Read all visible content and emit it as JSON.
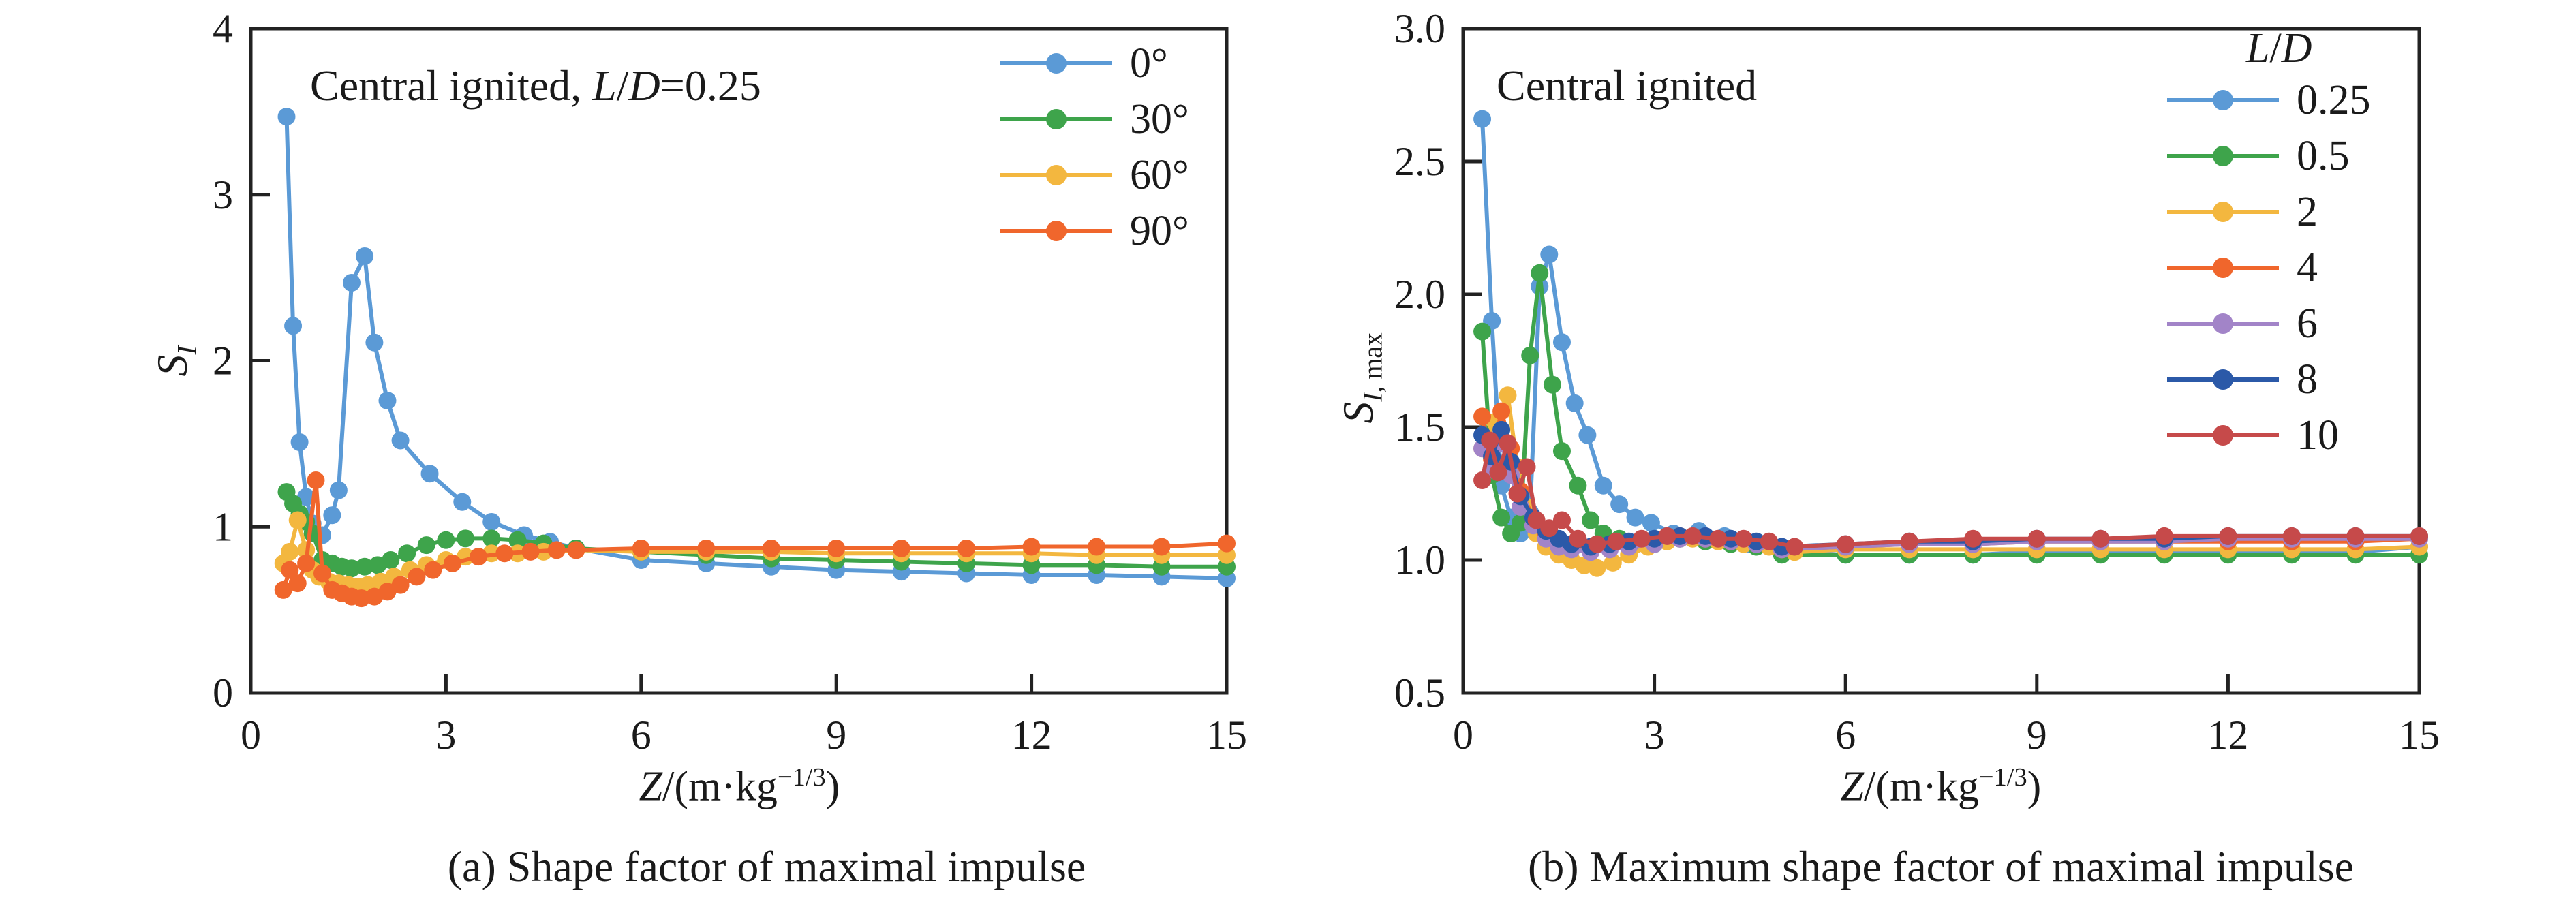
{
  "figure_background": "#ffffff",
  "axis_color": "#222222",
  "text_color": "#1a1a1a",
  "chart_data": [
    {
      "type": "line",
      "panel": "a",
      "title_rich": [
        {
          "t": "Central ignited, "
        },
        {
          "t": "L",
          "i": true
        },
        {
          "t": "/"
        },
        {
          "t": "D",
          "i": true
        },
        {
          "t": "=0.25"
        }
      ],
      "caption": "(a) Shape factor of maximal impulse",
      "xlabel_rich": [
        {
          "t": "Z",
          "i": true
        },
        {
          "t": "/(m·kg"
        },
        {
          "t": "−1/3",
          "sup": true
        },
        {
          "t": ")"
        }
      ],
      "ylabel_rich": [
        {
          "t": "S",
          "i": true
        },
        {
          "t": "I",
          "i": true,
          "sub": true
        }
      ],
      "xlim": [
        0,
        15
      ],
      "ylim": [
        0,
        4
      ],
      "grid": false,
      "x_ticks": [
        {
          "v": 0,
          "t": "0"
        },
        {
          "v": 3,
          "t": "3"
        },
        {
          "v": 6,
          "t": "6"
        },
        {
          "v": 9,
          "t": "9"
        },
        {
          "v": 12,
          "t": "12"
        },
        {
          "v": 15,
          "t": "15"
        }
      ],
      "y_ticks": [
        {
          "v": 0,
          "t": "0"
        },
        {
          "v": 1,
          "t": "1"
        },
        {
          "v": 2,
          "t": "2"
        },
        {
          "v": 3,
          "t": "3"
        },
        {
          "v": 4,
          "t": "4"
        }
      ],
      "legend": {
        "position": "upper-right-inside",
        "items": [
          {
            "label": "0°",
            "series": 0
          },
          {
            "label": "30°",
            "series": 1
          },
          {
            "label": "60°",
            "series": 2
          },
          {
            "label": "90°",
            "series": 3
          }
        ]
      },
      "series": [
        {
          "name": "0°",
          "color": "#5b9ad6",
          "x": [
            0.55,
            0.65,
            0.75,
            0.85,
            0.95,
            1.1,
            1.25,
            1.35,
            1.55,
            1.75,
            1.9,
            2.1,
            2.3,
            2.75,
            3.25,
            3.7,
            4.2,
            4.6,
            5,
            6,
            7,
            8,
            9,
            10,
            11,
            12,
            13,
            14,
            15
          ],
          "y": [
            3.47,
            2.21,
            1.51,
            1.18,
            1.02,
            0.95,
            1.07,
            1.22,
            2.47,
            2.63,
            2.11,
            1.76,
            1.52,
            1.32,
            1.15,
            1.03,
            0.95,
            0.91,
            0.87,
            0.8,
            0.78,
            0.76,
            0.74,
            0.73,
            0.72,
            0.71,
            0.71,
            0.7,
            0.69
          ]
        },
        {
          "name": "30°",
          "color": "#3ea44b",
          "x": [
            0.55,
            0.65,
            0.75,
            0.85,
            0.95,
            1.1,
            1.25,
            1.4,
            1.55,
            1.75,
            1.95,
            2.15,
            2.4,
            2.7,
            3.0,
            3.3,
            3.7,
            4.1,
            4.5,
            5,
            6,
            7,
            8,
            9,
            10,
            11,
            12,
            13,
            14,
            15
          ],
          "y": [
            1.21,
            1.14,
            1.08,
            1.03,
            0.96,
            0.8,
            0.78,
            0.76,
            0.75,
            0.76,
            0.77,
            0.8,
            0.84,
            0.89,
            0.92,
            0.93,
            0.93,
            0.92,
            0.9,
            0.87,
            0.85,
            0.83,
            0.81,
            0.8,
            0.79,
            0.78,
            0.77,
            0.77,
            0.76,
            0.76
          ]
        },
        {
          "name": "60°",
          "color": "#f3b73f",
          "x": [
            0.5,
            0.6,
            0.72,
            0.85,
            0.95,
            1.05,
            1.2,
            1.35,
            1.5,
            1.65,
            1.8,
            2.0,
            2.2,
            2.45,
            2.7,
            3.0,
            3.3,
            3.7,
            4.1,
            4.5,
            5,
            6,
            7,
            8,
            9,
            10,
            11,
            12,
            13,
            14,
            15
          ],
          "y": [
            0.78,
            0.85,
            1.04,
            0.86,
            0.74,
            0.7,
            0.67,
            0.66,
            0.65,
            0.64,
            0.65,
            0.67,
            0.7,
            0.74,
            0.77,
            0.8,
            0.82,
            0.84,
            0.84,
            0.85,
            0.86,
            0.85,
            0.85,
            0.85,
            0.84,
            0.84,
            0.84,
            0.84,
            0.83,
            0.83,
            0.83
          ]
        },
        {
          "name": "90°",
          "color": "#f0662c",
          "x": [
            0.5,
            0.6,
            0.72,
            0.85,
            1.0,
            1.1,
            1.25,
            1.4,
            1.55,
            1.7,
            1.9,
            2.1,
            2.3,
            2.55,
            2.8,
            3.1,
            3.5,
            3.9,
            4.3,
            4.7,
            5,
            6,
            7,
            8,
            9,
            10,
            11,
            12,
            13,
            14,
            15
          ],
          "y": [
            0.62,
            0.74,
            0.66,
            0.78,
            1.28,
            0.72,
            0.62,
            0.6,
            0.58,
            0.57,
            0.58,
            0.61,
            0.65,
            0.7,
            0.74,
            0.78,
            0.82,
            0.84,
            0.85,
            0.86,
            0.86,
            0.87,
            0.87,
            0.87,
            0.87,
            0.87,
            0.87,
            0.88,
            0.88,
            0.88,
            0.9
          ]
        }
      ]
    },
    {
      "type": "line",
      "panel": "b",
      "title_rich": [
        {
          "t": "Central ignited"
        }
      ],
      "caption": "(b) Maximum shape factor of maximal impulse",
      "xlabel_rich": [
        {
          "t": "Z",
          "i": true
        },
        {
          "t": "/(m·kg"
        },
        {
          "t": "−1/3",
          "sup": true
        },
        {
          "t": ")"
        }
      ],
      "ylabel_rich": [
        {
          "t": "S",
          "i": true
        },
        {
          "t": "I",
          "i": true,
          "sub": true
        },
        {
          "t": ", max",
          "sub": true
        }
      ],
      "xlim": [
        0,
        15
      ],
      "ylim": [
        0.5,
        3.0
      ],
      "grid": false,
      "x_ticks": [
        {
          "v": 0,
          "t": "0"
        },
        {
          "v": 3,
          "t": "3"
        },
        {
          "v": 6,
          "t": "6"
        },
        {
          "v": 9,
          "t": "9"
        },
        {
          "v": 12,
          "t": "12"
        },
        {
          "v": 15,
          "t": "15"
        }
      ],
      "y_ticks": [
        {
          "v": 0.5,
          "t": "0.5"
        },
        {
          "v": 1.0,
          "t": "1.0"
        },
        {
          "v": 1.5,
          "t": "1.5"
        },
        {
          "v": 2.0,
          "t": "2.0"
        },
        {
          "v": 2.5,
          "t": "2.5"
        },
        {
          "v": 3.0,
          "t": "3.0"
        }
      ],
      "legend": {
        "position": "upper-right-inside",
        "title_rich": [
          {
            "t": "L",
            "i": true
          },
          {
            "t": "/"
          },
          {
            "t": "D",
            "i": true
          }
        ],
        "items": [
          {
            "label": "0.25",
            "series": 0
          },
          {
            "label": "0.5",
            "series": 1
          },
          {
            "label": "2",
            "series": 2
          },
          {
            "label": "4",
            "series": 3
          },
          {
            "label": "6",
            "series": 4
          },
          {
            "label": "8",
            "series": 5
          },
          {
            "label": "10",
            "series": 6
          }
        ]
      },
      "series": [
        {
          "name": "0.25",
          "color": "#5b9ad6",
          "x": [
            0.3,
            0.45,
            0.6,
            0.75,
            0.9,
            1.05,
            1.2,
            1.35,
            1.55,
            1.75,
            1.95,
            2.2,
            2.45,
            2.7,
            2.95,
            3.3,
            3.7,
            4.1,
            4.5,
            5,
            6,
            7,
            8,
            9,
            10,
            11,
            12,
            13,
            14,
            15
          ],
          "y": [
            2.66,
            1.9,
            1.28,
            1.16,
            1.1,
            1.18,
            2.03,
            2.15,
            1.82,
            1.59,
            1.47,
            1.28,
            1.21,
            1.16,
            1.14,
            1.1,
            1.11,
            1.09,
            1.06,
            1.03,
            1.02,
            1.02,
            1.02,
            1.03,
            1.03,
            1.03,
            1.03,
            1.03,
            1.03,
            1.05
          ]
        },
        {
          "name": "0.5",
          "color": "#3ea44b",
          "x": [
            0.3,
            0.45,
            0.6,
            0.75,
            0.9,
            1.05,
            1.2,
            1.4,
            1.55,
            1.8,
            2.0,
            2.2,
            2.45,
            2.7,
            3.0,
            3.4,
            3.8,
            4.2,
            4.6,
            5,
            6,
            7,
            8,
            9,
            10,
            11,
            12,
            13,
            14,
            15
          ],
          "y": [
            1.86,
            1.32,
            1.16,
            1.1,
            1.14,
            1.77,
            2.08,
            1.66,
            1.41,
            1.28,
            1.15,
            1.1,
            1.08,
            1.06,
            1.06,
            1.08,
            1.07,
            1.06,
            1.05,
            1.02,
            1.02,
            1.02,
            1.02,
            1.02,
            1.02,
            1.02,
            1.02,
            1.02,
            1.02,
            1.02
          ]
        },
        {
          "name": "2",
          "color": "#f3b73f",
          "x": [
            0.3,
            0.5,
            0.7,
            0.85,
            1.0,
            1.15,
            1.3,
            1.5,
            1.7,
            1.9,
            2.1,
            2.35,
            2.6,
            2.9,
            3.2,
            3.6,
            4.0,
            4.4,
            4.8,
            5.2,
            6,
            7,
            8,
            9,
            10,
            11,
            12,
            13,
            14,
            15
          ],
          "y": [
            1.42,
            1.52,
            1.62,
            1.35,
            1.2,
            1.1,
            1.05,
            1.02,
            1.0,
            0.98,
            0.97,
            0.99,
            1.02,
            1.05,
            1.07,
            1.08,
            1.07,
            1.06,
            1.05,
            1.03,
            1.04,
            1.04,
            1.04,
            1.04,
            1.04,
            1.04,
            1.04,
            1.04,
            1.04,
            1.05
          ]
        },
        {
          "name": "4",
          "color": "#f0662c",
          "x": [
            0.3,
            0.45,
            0.6,
            0.75,
            0.9,
            1.1,
            1.3,
            1.5,
            1.7,
            2.0,
            2.3,
            2.6,
            3.0,
            3.4,
            3.8,
            4.2,
            4.6,
            5,
            6,
            7,
            8,
            9,
            10,
            11,
            12,
            13,
            14,
            15
          ],
          "y": [
            1.54,
            1.38,
            1.56,
            1.42,
            1.26,
            1.16,
            1.1,
            1.07,
            1.05,
            1.04,
            1.05,
            1.06,
            1.07,
            1.09,
            1.08,
            1.07,
            1.06,
            1.04,
            1.05,
            1.06,
            1.06,
            1.07,
            1.07,
            1.07,
            1.07,
            1.07,
            1.07,
            1.08
          ]
        },
        {
          "name": "6",
          "color": "#a284c8",
          "x": [
            0.3,
            0.45,
            0.6,
            0.75,
            0.9,
            1.1,
            1.3,
            1.5,
            1.7,
            2.0,
            2.3,
            2.6,
            3.0,
            3.4,
            3.8,
            4.2,
            4.6,
            5,
            6,
            7,
            8,
            9,
            10,
            11,
            12,
            13,
            14,
            15
          ],
          "y": [
            1.42,
            1.34,
            1.44,
            1.32,
            1.2,
            1.13,
            1.08,
            1.05,
            1.04,
            1.03,
            1.04,
            1.05,
            1.06,
            1.08,
            1.08,
            1.07,
            1.06,
            1.04,
            1.05,
            1.06,
            1.06,
            1.07,
            1.07,
            1.07,
            1.08,
            1.08,
            1.08,
            1.08
          ]
        },
        {
          "name": "8",
          "color": "#2b59a8",
          "x": [
            0.3,
            0.45,
            0.6,
            0.75,
            0.9,
            1.1,
            1.3,
            1.5,
            1.7,
            2.0,
            2.3,
            2.6,
            3.0,
            3.4,
            3.8,
            4.2,
            4.6,
            5,
            6,
            7,
            8,
            9,
            10,
            11,
            12,
            13,
            14,
            15
          ],
          "y": [
            1.47,
            1.39,
            1.49,
            1.37,
            1.24,
            1.16,
            1.11,
            1.08,
            1.06,
            1.05,
            1.06,
            1.07,
            1.08,
            1.09,
            1.09,
            1.08,
            1.07,
            1.05,
            1.06,
            1.07,
            1.07,
            1.08,
            1.08,
            1.08,
            1.09,
            1.09,
            1.09,
            1.09
          ]
        },
        {
          "name": "10",
          "color": "#c64a4a",
          "x": [
            0.3,
            0.42,
            0.55,
            0.7,
            0.85,
            1.0,
            1.15,
            1.35,
            1.55,
            1.8,
            2.1,
            2.4,
            2.8,
            3.2,
            3.6,
            4.0,
            4.4,
            4.8,
            5.2,
            6,
            7,
            8,
            9,
            10,
            11,
            12,
            13,
            14,
            15
          ],
          "y": [
            1.3,
            1.45,
            1.33,
            1.44,
            1.25,
            1.35,
            1.15,
            1.12,
            1.15,
            1.08,
            1.06,
            1.07,
            1.08,
            1.09,
            1.09,
            1.08,
            1.08,
            1.07,
            1.05,
            1.06,
            1.07,
            1.08,
            1.08,
            1.08,
            1.09,
            1.09,
            1.09,
            1.09,
            1.09
          ]
        }
      ]
    }
  ]
}
